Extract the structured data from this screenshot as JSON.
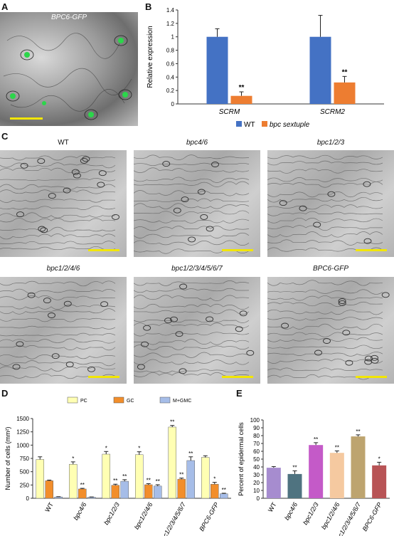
{
  "panels": {
    "A": {
      "label": "A",
      "title": "BPC6-GFP"
    },
    "B": {
      "label": "B"
    },
    "C": {
      "label": "C",
      "images": [
        {
          "caption": "WT"
        },
        {
          "caption": "bpc4/6"
        },
        {
          "caption": "bpc1/2/3"
        },
        {
          "caption": "bpc1/2/4/6"
        },
        {
          "caption": "bpc1/2/3/4/5/6/7"
        },
        {
          "caption": "BPC6-GFP"
        }
      ]
    },
    "D": {
      "label": "D"
    },
    "E": {
      "label": "E"
    }
  },
  "colors": {
    "scalebar": "#f2e600"
  },
  "chart_data": [
    {
      "panel": "B",
      "type": "bar",
      "categories": [
        "SCRM",
        "SCRM2"
      ],
      "series": [
        {
          "name": "WT",
          "values": [
            1.0,
            1.0
          ],
          "errors": [
            0.12,
            0.32
          ],
          "color": "#4472c4"
        },
        {
          "name": "bpc sextuple",
          "values": [
            0.12,
            0.32
          ],
          "errors": [
            0.06,
            0.09
          ],
          "color": "#ed7d31"
        }
      ],
      "significance": [
        [
          "",
          ""
        ],
        [
          "**",
          "**"
        ]
      ],
      "ylabel": "Relative expression",
      "ylim": [
        0,
        1.4
      ],
      "yticks": [
        "0",
        "0.2",
        "0.4",
        "0.6",
        "0.8",
        "1",
        "1.2",
        "1.4"
      ],
      "legend": "bottom"
    },
    {
      "panel": "D",
      "type": "bar",
      "categories": [
        "WT",
        "bpc4/6",
        "bpc1/2/3",
        "bpc1/2/4/6",
        "bpc1/2/3/4/5/6/7",
        "BPC6-GFP"
      ],
      "series": [
        {
          "name": "PC",
          "values": [
            730,
            640,
            830,
            820,
            1340,
            770
          ],
          "errors": [
            50,
            45,
            50,
            55,
            30,
            30
          ],
          "color": "#ffffb3"
        },
        {
          "name": "GC",
          "values": [
            330,
            175,
            245,
            255,
            360,
            265
          ],
          "errors": [
            12,
            12,
            20,
            20,
            20,
            35
          ],
          "color": "#f28e2b"
        },
        {
          "name": "M+GMC",
          "values": [
            25,
            20,
            320,
            230,
            710,
            85
          ],
          "errors": [
            5,
            5,
            30,
            25,
            70,
            10
          ],
          "color": "#a6bde8"
        }
      ],
      "significance": [
        [
          "",
          "*",
          "*",
          "*",
          "**",
          ""
        ],
        [
          "",
          "**",
          "**",
          "**",
          "**",
          "*"
        ],
        [
          "",
          "",
          "**",
          "**",
          "**",
          "**"
        ]
      ],
      "ylabel": "Number of cells (mm²)",
      "ylim": [
        0,
        1500
      ],
      "yticks": [
        "0",
        "250",
        "500",
        "750",
        "1000",
        "1250",
        "1500"
      ],
      "legend": "top"
    },
    {
      "panel": "E",
      "type": "bar",
      "categories": [
        "WT",
        "bpc4/6",
        "bpc1/2/3",
        "bpc1/2/4/6",
        "bpc1/2/3/4/5/6/7",
        "BPC6-GFP"
      ],
      "values": [
        39,
        31,
        68,
        58,
        79,
        42
      ],
      "errors": [
        1.5,
        4,
        3,
        2.5,
        2,
        4
      ],
      "colors": [
        "#a68ccf",
        "#4f7380",
        "#c45ac8",
        "#f5c9a0",
        "#bda46f",
        "#b85456"
      ],
      "significance": [
        "",
        "**",
        "**",
        "**",
        "**",
        "*"
      ],
      "ylabel": "Percent of epidermal cells",
      "ylim": [
        0,
        100
      ],
      "yticks": [
        "0",
        "10",
        "20",
        "30",
        "40",
        "50",
        "60",
        "70",
        "80",
        "90",
        "100"
      ]
    }
  ]
}
